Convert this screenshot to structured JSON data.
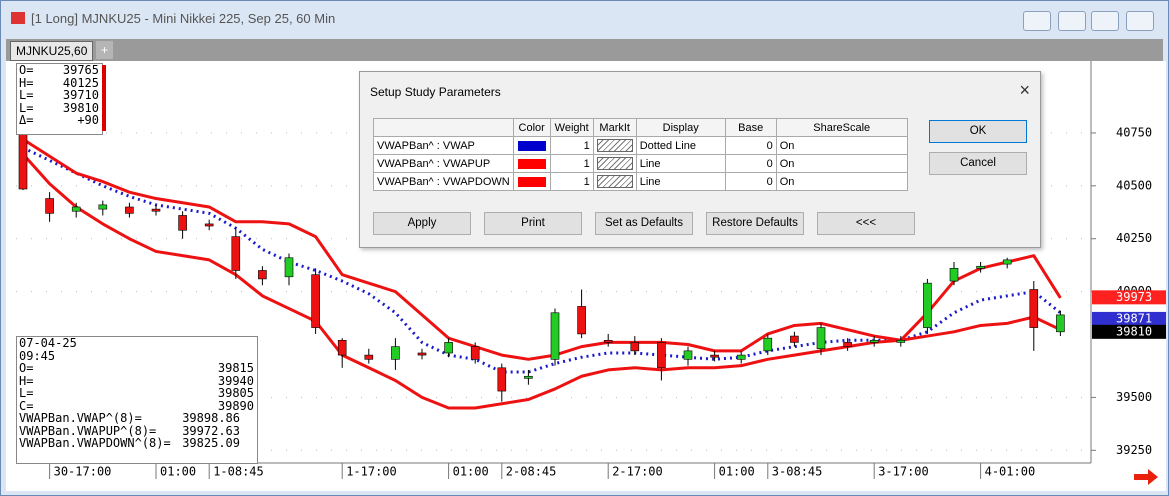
{
  "window": {
    "title": "[1 Long]  MJNKU25 - Mini Nikkei 225, Sep 25, 60 Min"
  },
  "tabs": [
    "MJNKU25,60",
    "+"
  ],
  "readout_top": {
    "rows": [
      {
        "label": "O=",
        "value": "39765"
      },
      {
        "label": "H=",
        "value": "40125"
      },
      {
        "label": "L=",
        "value": "39710"
      },
      {
        "label": "L=",
        "value": "39810"
      },
      {
        "label": "Δ=",
        "value": "+90"
      }
    ]
  },
  "readout_bottom": {
    "date": "07-04-25",
    "time": "09:45",
    "rows": [
      {
        "label": "O=",
        "value": "39815"
      },
      {
        "label": "H=",
        "value": "39940"
      },
      {
        "label": "L=",
        "value": "39805"
      },
      {
        "label": "C=",
        "value": "39890"
      },
      {
        "label": "VWAPBan.VWAP^(8)=",
        "value": "39898.86"
      },
      {
        "label": "VWAPBan.VWAPUP^(8)=",
        "value": "39972.63"
      },
      {
        "label": "VWAPBan.VWAPDOWN^(8)=",
        "value": "39825.09"
      }
    ]
  },
  "dialog": {
    "title": "Setup Study Parameters",
    "columns": [
      "Color",
      "Weight",
      "MarkIt",
      "Display",
      "Base",
      "ShareScale"
    ],
    "rows": [
      {
        "name": "VWAPBan^ : VWAP",
        "color": "#0000cc",
        "weight": 1,
        "display": "Dotted Line",
        "base": 0,
        "share_scale": "On"
      },
      {
        "name": "VWAPBan^ : VWAPUP",
        "color": "#ff0000",
        "weight": 1,
        "display": "Line",
        "base": 0,
        "share_scale": "On"
      },
      {
        "name": "VWAPBan^ : VWAPDOWN",
        "color": "#ff0000",
        "weight": 1,
        "display": "Line",
        "base": 0,
        "share_scale": "On"
      }
    ],
    "buttons_right": [
      "OK",
      "Cancel"
    ],
    "buttons_bottom": [
      "Apply",
      "Print",
      "Set as Defaults",
      "Restore Defaults",
      "<<<"
    ]
  },
  "price_badges": [
    {
      "value": 39973,
      "color": "#ff2020"
    },
    {
      "value": 39871,
      "color": "#3030d0"
    },
    {
      "value": 39810,
      "color": "#000000"
    }
  ],
  "chart_data": {
    "type": "candlestick",
    "categories": [
      null,
      "30-17:00",
      null,
      null,
      null,
      "01:00",
      null,
      "1-08:45",
      null,
      null,
      null,
      null,
      "1-17:00",
      null,
      null,
      null,
      "01:00",
      null,
      "2-08:45",
      null,
      null,
      null,
      "2-17:00",
      null,
      null,
      null,
      "01:00",
      null,
      "3-08:45",
      null,
      null,
      null,
      "3-17:00",
      null,
      null,
      null,
      "4-01:00",
      null,
      null,
      null
    ],
    "candles": [
      {
        "open": 40770,
        "high": 40800,
        "low": 40480,
        "close": 40485
      },
      {
        "open": 40440,
        "high": 40470,
        "low": 40330,
        "close": 40370
      },
      {
        "open": 40380,
        "high": 40420,
        "low": 40350,
        "close": 40400
      },
      {
        "open": 40390,
        "high": 40430,
        "low": 40360,
        "close": 40410
      },
      {
        "open": 40400,
        "high": 40420,
        "low": 40350,
        "close": 40370
      },
      {
        "open": 40390,
        "high": 40410,
        "low": 40360,
        "close": 40380
      },
      {
        "open": 40360,
        "high": 40380,
        "low": 40250,
        "close": 40290
      },
      {
        "open": 40320,
        "high": 40340,
        "low": 40290,
        "close": 40310
      },
      {
        "open": 40260,
        "high": 40300,
        "low": 40060,
        "close": 40100
      },
      {
        "open": 40100,
        "high": 40120,
        "low": 40030,
        "close": 40060
      },
      {
        "open": 40070,
        "high": 40180,
        "low": 40030,
        "close": 40160
      },
      {
        "open": 40080,
        "high": 40110,
        "low": 39800,
        "close": 39830
      },
      {
        "open": 39770,
        "high": 39780,
        "low": 39640,
        "close": 39700
      },
      {
        "open": 39700,
        "high": 39730,
        "low": 39660,
        "close": 39680
      },
      {
        "open": 39680,
        "high": 39780,
        "low": 39630,
        "close": 39740
      },
      {
        "open": 39710,
        "high": 39730,
        "low": 39680,
        "close": 39700
      },
      {
        "open": 39710,
        "high": 39780,
        "low": 39690,
        "close": 39760
      },
      {
        "open": 39740,
        "high": 39760,
        "low": 39660,
        "close": 39680
      },
      {
        "open": 39640,
        "high": 39660,
        "low": 39480,
        "close": 39530
      },
      {
        "open": 39590,
        "high": 39630,
        "low": 39560,
        "close": 39600
      },
      {
        "open": 39680,
        "high": 39920,
        "low": 39650,
        "close": 39900
      },
      {
        "open": 39930,
        "high": 40010,
        "low": 39780,
        "close": 39800
      },
      {
        "open": 39770,
        "high": 39800,
        "low": 39740,
        "close": 39760
      },
      {
        "open": 39760,
        "high": 39790,
        "low": 39700,
        "close": 39720
      },
      {
        "open": 39760,
        "high": 39780,
        "low": 39580,
        "close": 39640
      },
      {
        "open": 39680,
        "high": 39740,
        "low": 39650,
        "close": 39720
      },
      {
        "open": 39700,
        "high": 39720,
        "low": 39670,
        "close": 39690
      },
      {
        "open": 39680,
        "high": 39720,
        "low": 39660,
        "close": 39700
      },
      {
        "open": 39720,
        "high": 39800,
        "low": 39700,
        "close": 39780
      },
      {
        "open": 39790,
        "high": 39810,
        "low": 39740,
        "close": 39760
      },
      {
        "open": 39730,
        "high": 39850,
        "low": 39700,
        "close": 39830
      },
      {
        "open": 39760,
        "high": 39780,
        "low": 39720,
        "close": 39740
      },
      {
        "open": 39760,
        "high": 39790,
        "low": 39740,
        "close": 39770
      },
      {
        "open": 39760,
        "high": 39790,
        "low": 39740,
        "close": 39770
      },
      {
        "open": 39830,
        "high": 40060,
        "low": 39800,
        "close": 40040
      },
      {
        "open": 40050,
        "high": 40140,
        "low": 40030,
        "close": 40110
      },
      {
        "open": 40110,
        "high": 40140,
        "low": 40090,
        "close": 40120
      },
      {
        "open": 40130,
        "high": 40160,
        "low": 40110,
        "close": 40150
      },
      {
        "open": 40010,
        "high": 40050,
        "low": 39720,
        "close": 39830
      },
      {
        "open": 39810,
        "high": 39910,
        "low": 39790,
        "close": 39890
      }
    ],
    "up_color": "#22cc22",
    "down_color": "#ee1111",
    "series": [
      {
        "color": "#1a1acc",
        "style": "dotted",
        "values": [
          40680,
          40620,
          40560,
          40500,
          40450,
          40410,
          40390,
          40370,
          40300,
          40200,
          40140,
          40100,
          40050,
          39990,
          39900,
          39760,
          39700,
          39680,
          39620,
          39620,
          39660,
          39690,
          39710,
          39710,
          39700,
          39690,
          39680,
          39690,
          39720,
          39740,
          39760,
          39770,
          39770,
          39770,
          39810,
          39900,
          39960,
          39980,
          40000,
          39900
        ]
      },
      {
        "color": "#ee1111",
        "style": "solid",
        "values": [
          40720,
          40640,
          40560,
          40520,
          40470,
          40440,
          40420,
          40400,
          40330,
          40330,
          40320,
          40260,
          40080,
          40040,
          40000,
          39890,
          39780,
          39740,
          39700,
          39680,
          39700,
          39740,
          39760,
          39760,
          39760,
          39750,
          39720,
          39720,
          39800,
          39840,
          39850,
          39820,
          39790,
          39770,
          39900,
          40050,
          40110,
          40140,
          40170,
          39970
        ]
      },
      {
        "color": "#ee1111",
        "style": "solid",
        "values": [
          40650,
          40510,
          40400,
          40320,
          40250,
          40190,
          40170,
          40150,
          40080,
          39980,
          39920,
          39860,
          39700,
          39640,
          39580,
          39500,
          39450,
          39450,
          39470,
          39490,
          39540,
          39600,
          39630,
          39640,
          39630,
          39640,
          39640,
          39650,
          39680,
          39700,
          39720,
          39740,
          39760,
          39770,
          39790,
          39810,
          39840,
          39850,
          39880,
          39820
        ]
      }
    ],
    "ylim": [
      39190,
      41090
    ],
    "yticks": [
      39250,
      39500,
      40000,
      40250,
      40500,
      40750
    ],
    "grid": true
  }
}
